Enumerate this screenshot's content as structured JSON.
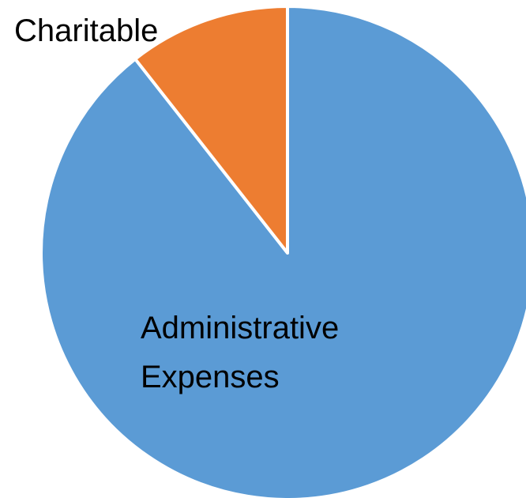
{
  "chart_data": {
    "type": "pie",
    "title": "",
    "categories": [
      "Administrative Expenses",
      "Charitable"
    ],
    "values": [
      89.4,
      10.6
    ],
    "colors": [
      "#5b9bd5",
      "#ed7d31"
    ],
    "start_angle_deg": 0,
    "direction": "clockwise",
    "legend": "none",
    "slice_labels": [
      {
        "lines": [
          "Administrative",
          "Expenses"
        ]
      },
      {
        "lines": [
          "Charitable"
        ]
      }
    ]
  }
}
